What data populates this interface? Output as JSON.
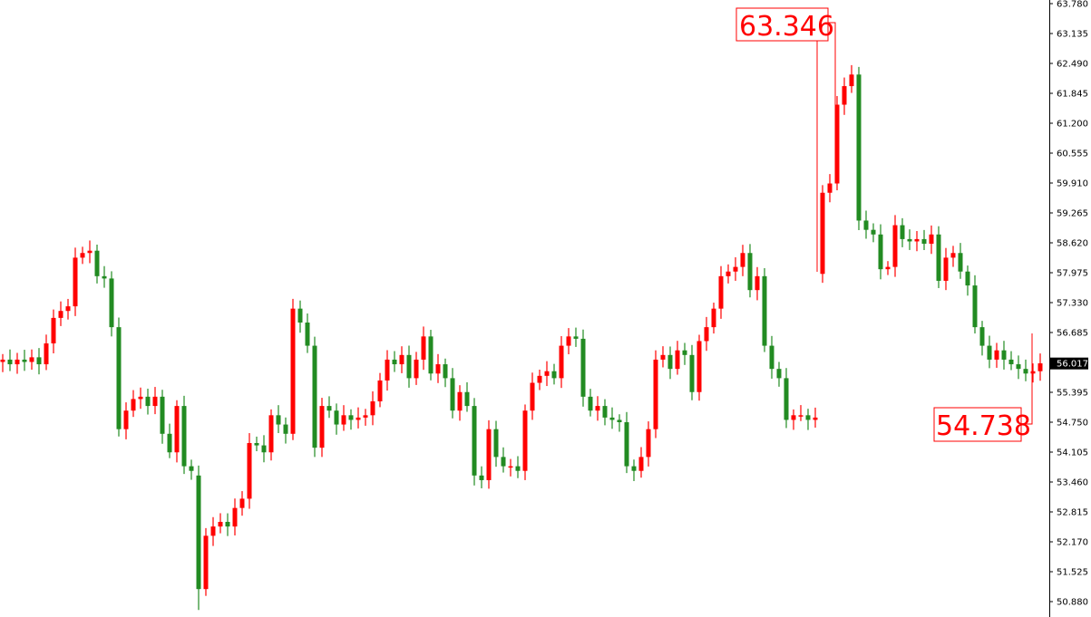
{
  "chart_data": {
    "type": "candlestick",
    "title": "",
    "xlabel": "",
    "ylabel": "",
    "ylim": [
      50.88,
      63.78
    ],
    "grid": false,
    "y_ticks": [
      "63.780",
      "63.135",
      "62.490",
      "61.845",
      "61.200",
      "60.555",
      "59.910",
      "59.265",
      "58.620",
      "57.975",
      "57.330",
      "56.685",
      "55.395",
      "54.750",
      "54.105",
      "53.460",
      "52.815",
      "52.170",
      "51.525",
      "50.880"
    ],
    "current_price": "56.017",
    "annotations": {
      "high": "63.346",
      "low": "54.738"
    },
    "colors": {
      "bullish": "#ff0000",
      "bearish": "#228b22",
      "annotation": "#ff0000",
      "current_price_bg": "#000000"
    },
    "close": [
      56.1,
      56.0,
      56.1,
      56.05,
      56.15,
      56.0,
      56.45,
      57.0,
      57.15,
      57.25,
      58.3,
      58.4,
      58.45,
      57.9,
      57.85,
      56.8,
      54.6,
      55.0,
      55.25,
      55.3,
      55.1,
      55.3,
      54.5,
      54.1,
      55.1,
      53.8,
      53.7,
      51.15,
      52.3,
      52.5,
      52.6,
      52.5,
      52.9,
      53.1,
      54.3,
      54.25,
      54.1,
      54.9,
      54.7,
      54.5,
      57.2,
      56.9,
      56.4,
      54.2,
      55.1,
      55.0,
      54.7,
      54.9,
      54.8,
      54.85,
      54.9,
      55.2,
      55.65,
      56.1,
      56.0,
      56.2,
      55.7,
      56.1,
      56.6,
      55.8,
      56.0,
      55.7,
      55.0,
      55.4,
      55.1,
      53.6,
      53.5,
      54.6,
      54.0,
      53.8,
      53.8,
      53.7,
      55.0,
      55.6,
      55.75,
      55.85,
      55.7,
      56.4,
      56.6,
      56.55,
      55.3,
      55.0,
      55.1,
      54.85,
      54.8,
      54.75,
      53.8,
      53.7,
      54.0,
      54.6,
      56.1,
      56.2,
      55.9,
      56.3,
      56.2,
      55.4,
      56.5,
      56.8,
      57.2,
      57.9,
      58.0,
      58.1,
      58.4,
      57.6,
      57.9,
      56.4,
      55.9,
      55.7,
      54.8,
      54.9,
      54.9,
      54.8,
      54.85,
      59.7,
      59.9,
      61.6,
      62.0,
      62.25,
      59.1,
      58.9,
      58.8,
      58.05,
      58.1,
      59.0,
      58.7,
      58.65,
      58.7,
      58.6,
      58.8,
      57.8,
      58.3,
      58.4,
      58.0,
      57.7,
      56.8,
      56.4,
      56.1,
      56.3,
      56.1,
      56.0,
      55.9,
      55.8,
      55.85,
      56.02
    ],
    "open_override": {
      "27": 53.6,
      "113": 57.95
    },
    "low_override": {
      "27": 50.7
    }
  }
}
